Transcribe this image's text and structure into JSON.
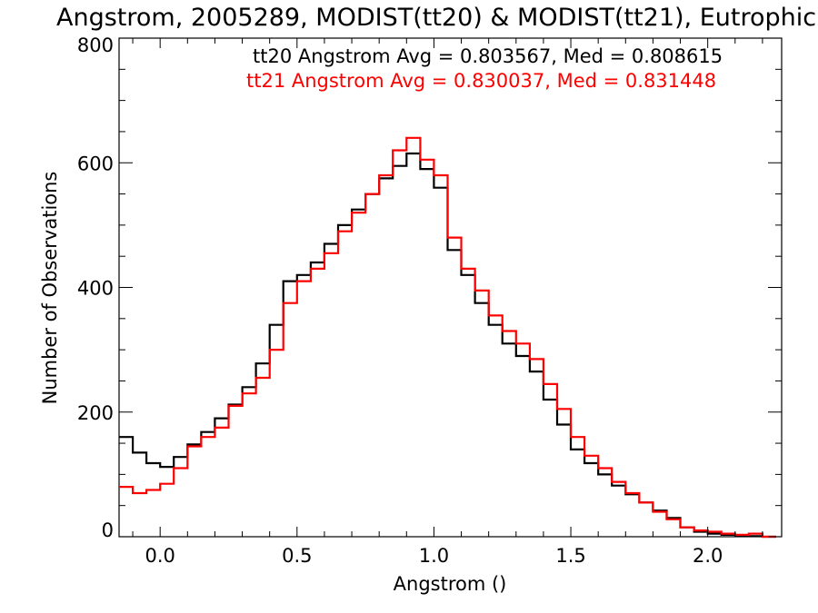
{
  "chart_data": {
    "type": "line",
    "title": "Angstrom, 2005289, MODIST(tt20) & MODIST(tt21), Eutrophic",
    "xlabel": "Angstrom ()",
    "ylabel": "Number of Observations",
    "xlim": [
      -0.15,
      2.27
    ],
    "ylim": [
      0,
      800
    ],
    "x_ticks": [
      "0.0",
      "0.5",
      "1.0",
      "1.5",
      "2.0"
    ],
    "y_ticks": [
      "0",
      "200",
      "400",
      "600",
      "800"
    ],
    "grid": false,
    "legend_position": "top-right",
    "annotations": [
      {
        "text": "tt20 Angstrom Avg = 0.803567, Med = 0.808615",
        "color": "#000000"
      },
      {
        "text": "tt21 Angstrom Avg = 0.830037, Med = 0.831448",
        "color": "#ff0000"
      }
    ],
    "series": [
      {
        "name": "tt20",
        "color": "#000000",
        "x": [
          -0.15,
          -0.1,
          -0.05,
          0.0,
          0.05,
          0.1,
          0.15,
          0.2,
          0.25,
          0.3,
          0.35,
          0.4,
          0.45,
          0.5,
          0.55,
          0.6,
          0.65,
          0.7,
          0.75,
          0.8,
          0.85,
          0.9,
          0.95,
          1.0,
          1.05,
          1.1,
          1.15,
          1.2,
          1.25,
          1.3,
          1.35,
          1.4,
          1.45,
          1.5,
          1.55,
          1.6,
          1.65,
          1.7,
          1.75,
          1.8,
          1.85,
          1.9,
          1.95,
          2.0,
          2.05,
          2.1,
          2.15,
          2.2
        ],
        "values": [
          160,
          135,
          118,
          112,
          128,
          148,
          168,
          190,
          212,
          240,
          278,
          340,
          410,
          420,
          440,
          470,
          500,
          525,
          550,
          575,
          595,
          615,
          590,
          560,
          460,
          420,
          375,
          340,
          310,
          290,
          265,
          220,
          180,
          140,
          118,
          100,
          82,
          68,
          55,
          42,
          30,
          15,
          8,
          5,
          3,
          2,
          1,
          0
        ]
      },
      {
        "name": "tt21",
        "color": "#ff0000",
        "x": [
          -0.15,
          -0.1,
          -0.05,
          0.0,
          0.05,
          0.1,
          0.15,
          0.2,
          0.25,
          0.3,
          0.35,
          0.4,
          0.45,
          0.5,
          0.55,
          0.6,
          0.65,
          0.7,
          0.75,
          0.8,
          0.85,
          0.9,
          0.95,
          1.0,
          1.05,
          1.1,
          1.15,
          1.2,
          1.25,
          1.3,
          1.35,
          1.4,
          1.45,
          1.5,
          1.55,
          1.6,
          1.65,
          1.7,
          1.75,
          1.8,
          1.85,
          1.9,
          1.95,
          2.0,
          2.05,
          2.1,
          2.15,
          2.2
        ],
        "values": [
          80,
          70,
          75,
          85,
          110,
          145,
          160,
          175,
          210,
          230,
          255,
          300,
          375,
          410,
          430,
          455,
          490,
          520,
          550,
          580,
          620,
          640,
          605,
          580,
          480,
          430,
          395,
          355,
          330,
          310,
          285,
          245,
          205,
          160,
          130,
          110,
          88,
          70,
          55,
          40,
          28,
          15,
          10,
          8,
          5,
          3,
          5,
          0
        ]
      }
    ]
  }
}
